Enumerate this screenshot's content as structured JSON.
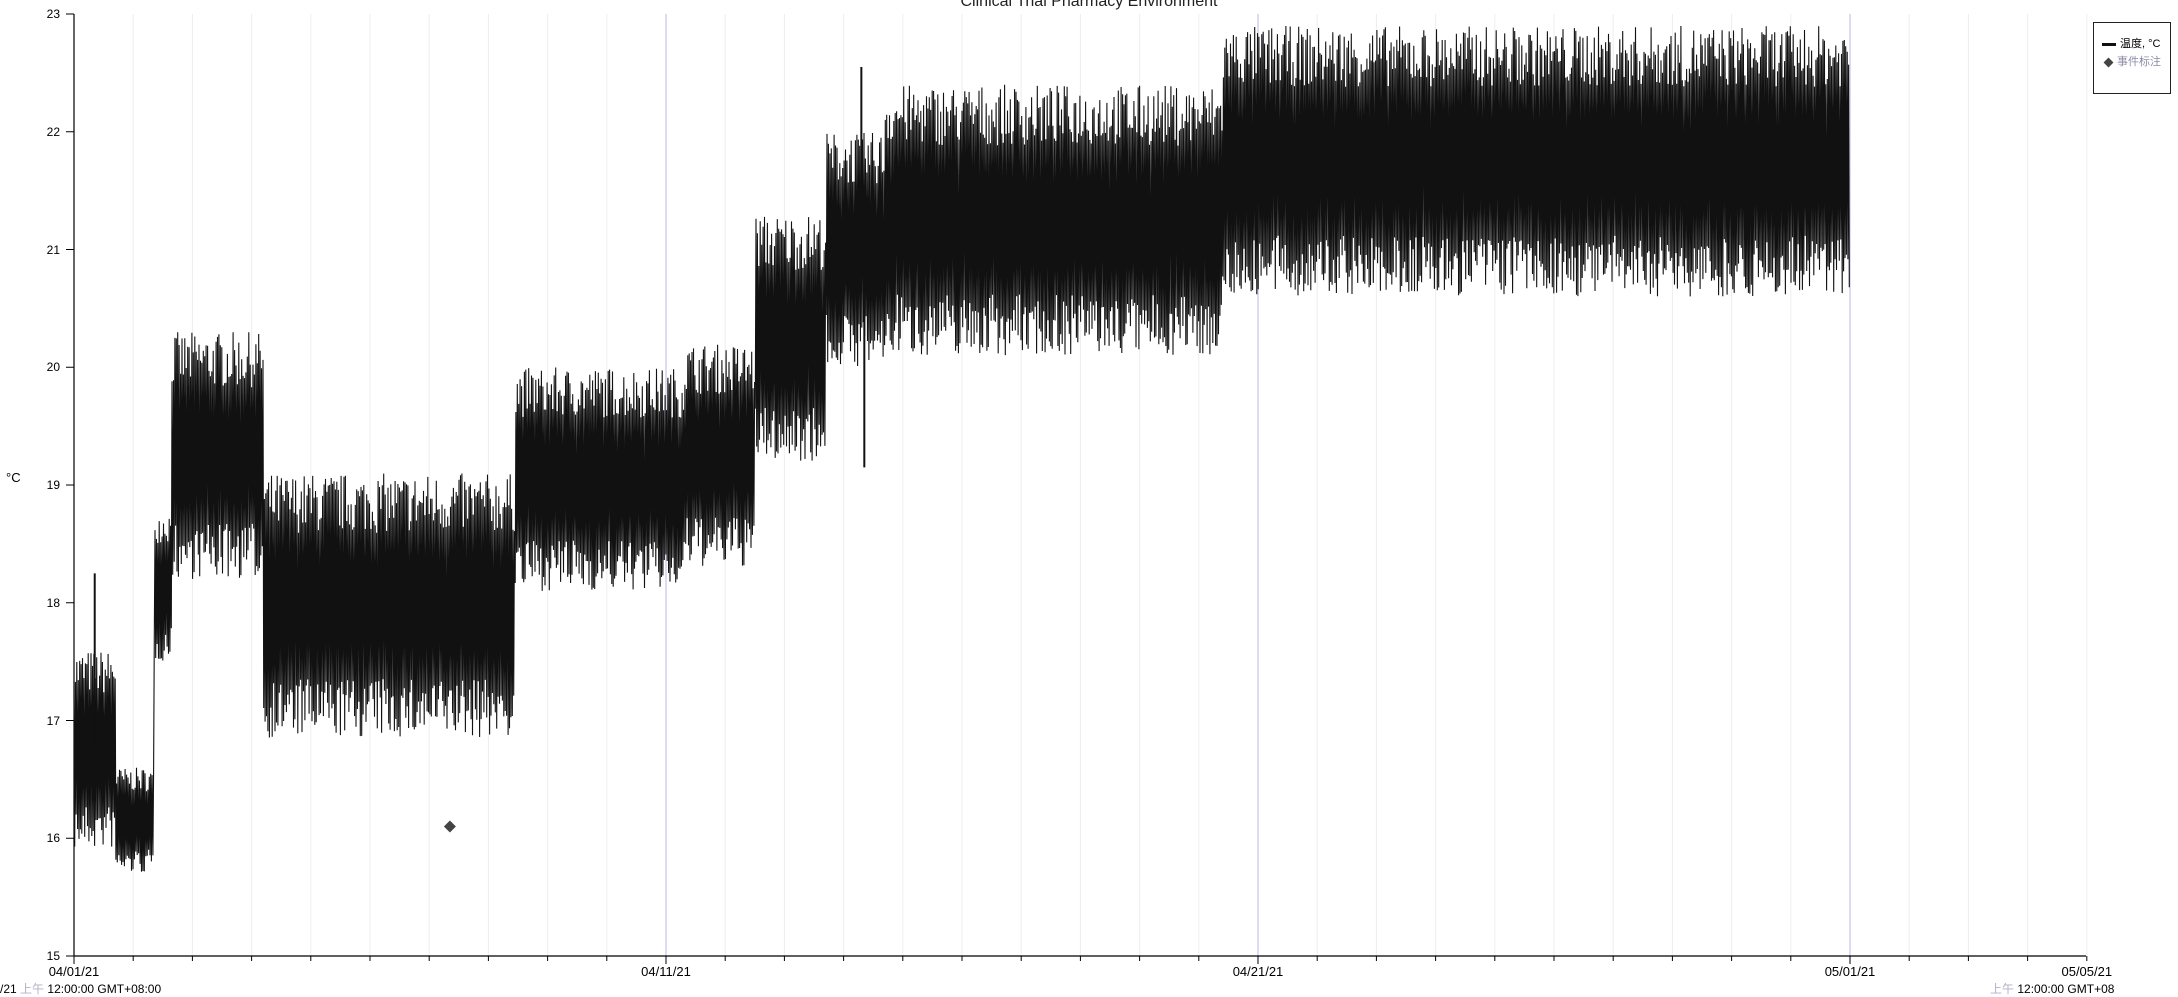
{
  "chart_data": {
    "type": "line",
    "title": "Clinical Trial Pharmacy Environment",
    "ylabel": "°C",
    "ylim": [
      15,
      23
    ],
    "yticks": [
      15,
      16,
      17,
      18,
      19,
      20,
      21,
      22,
      23
    ],
    "xlim": [
      "04/01/21",
      "05/05/21"
    ],
    "xticks": [
      {
        "label": "04/01/21",
        "day": 0
      },
      {
        "label": "04/11/21",
        "day": 10
      },
      {
        "label": "04/21/21",
        "day": 20
      },
      {
        "label": "05/01/21",
        "day": 30
      },
      {
        "label": "05/05/21",
        "day": 34
      }
    ],
    "x_start_text": {
      "left": "/21",
      "ampm": "上午",
      "right": "12:00:00 GMT+08:00"
    },
    "x_end_text": {
      "left": "",
      "ampm": "上午",
      "right": "12:00:00 GMT+08"
    },
    "series": [
      {
        "name": "温度, °C",
        "color": "#111111",
        "bands": [
          {
            "start": 0.0,
            "end": 0.7,
            "low": 15.9,
            "high": 17.6
          },
          {
            "start": 0.7,
            "end": 1.35,
            "low": 15.7,
            "high": 16.6
          },
          {
            "start": 1.35,
            "end": 1.65,
            "low": 17.5,
            "high": 18.8
          },
          {
            "start": 1.65,
            "end": 3.2,
            "low": 18.2,
            "high": 20.3
          },
          {
            "start": 3.2,
            "end": 7.45,
            "low": 16.85,
            "high": 19.1
          },
          {
            "start": 7.45,
            "end": 10.3,
            "low": 18.1,
            "high": 20.0
          },
          {
            "start": 10.3,
            "end": 11.5,
            "low": 18.3,
            "high": 20.2
          },
          {
            "start": 11.5,
            "end": 12.7,
            "low": 19.2,
            "high": 21.3
          },
          {
            "start": 12.7,
            "end": 13.7,
            "low": 20.0,
            "high": 22.0
          },
          {
            "start": 13.7,
            "end": 19.4,
            "low": 20.1,
            "high": 22.4
          },
          {
            "start": 19.4,
            "end": 30.0,
            "low": 20.6,
            "high": 22.9
          }
        ],
        "spikes": [
          {
            "day": 0.35,
            "value": 18.25
          },
          {
            "day": 13.3,
            "value": 22.55
          },
          {
            "day": 13.35,
            "value": 19.15
          }
        ]
      },
      {
        "name": "事件标注",
        "color": "#444444",
        "points": [
          {
            "day": 6.35,
            "value": 16.1
          }
        ]
      }
    ],
    "grid": true,
    "legend": "top-right"
  }
}
